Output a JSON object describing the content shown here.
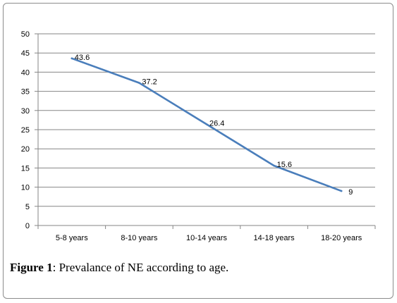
{
  "caption": {
    "label": "Figure 1",
    "text": ": Prevalance of NE according to age."
  },
  "chart_data": {
    "type": "line",
    "categories": [
      "5-8 years",
      "8-10 years",
      "10-14 years",
      "14-18 years",
      "18-20 years"
    ],
    "series": [
      {
        "values": [
          43.6,
          37.2,
          26.4,
          15.6,
          9
        ],
        "color": "#4a7ebb"
      }
    ],
    "data_labels": [
      "43.6",
      "37.2",
      "26.4",
      "15.6",
      "9"
    ],
    "yticks": [
      0,
      5,
      10,
      15,
      20,
      25,
      30,
      35,
      40,
      45,
      50
    ],
    "ylim": [
      0,
      50
    ],
    "grid": true,
    "legend": "none",
    "title": "",
    "xlabel": "",
    "ylabel": ""
  }
}
